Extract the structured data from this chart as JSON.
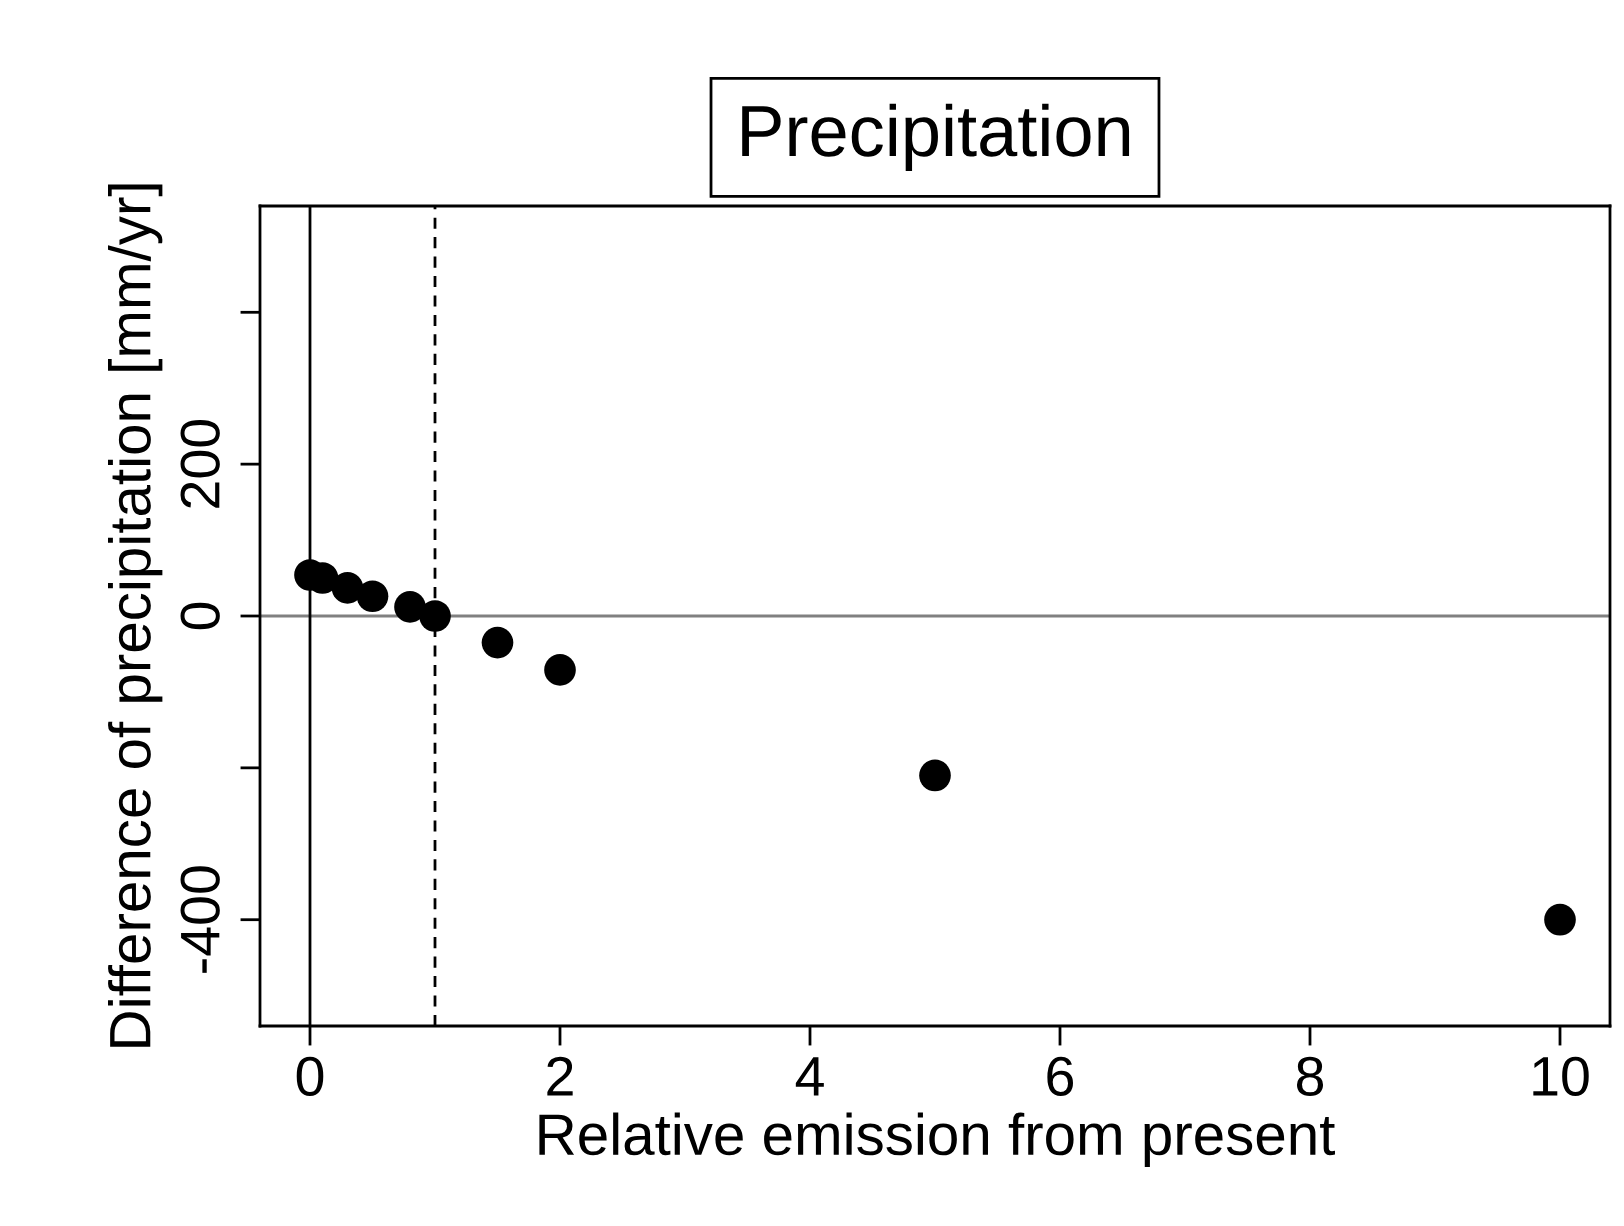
{
  "chart_data": {
    "type": "scatter",
    "title": "Precipitation",
    "xlabel": "Relative emission from present",
    "ylabel": "Difference of precipitation [mm/yr]",
    "x": [
      0,
      0.1,
      0.3,
      0.5,
      0.8,
      1,
      1.5,
      2,
      5,
      10
    ],
    "series": [
      {
        "color": "#000000",
        "values": [
          54,
          50,
          37,
          26,
          12,
          0,
          -35,
          -71,
          -210,
          -400
        ]
      }
    ],
    "marker": "circle",
    "grid": false,
    "legend": false,
    "xlim": [
      -0.4,
      10.4
    ],
    "xticks": [
      0,
      2,
      4,
      6,
      8,
      10
    ],
    "ylim": [
      -540,
      540
    ],
    "yticks": [
      {
        "value": -400,
        "label": "-400"
      },
      {
        "value": -200,
        "label": null
      },
      0,
      200,
      {
        "value": 400,
        "label": null
      }
    ],
    "ref_lines": [
      {
        "axis": "y",
        "value": 0,
        "color": "#808080",
        "line_style": "solid"
      },
      {
        "axis": "x",
        "value": 0,
        "color": "#000000",
        "line_style": "solid"
      },
      {
        "axis": "x",
        "value": 1,
        "color": "#000000",
        "line_style": "dashed"
      }
    ]
  }
}
